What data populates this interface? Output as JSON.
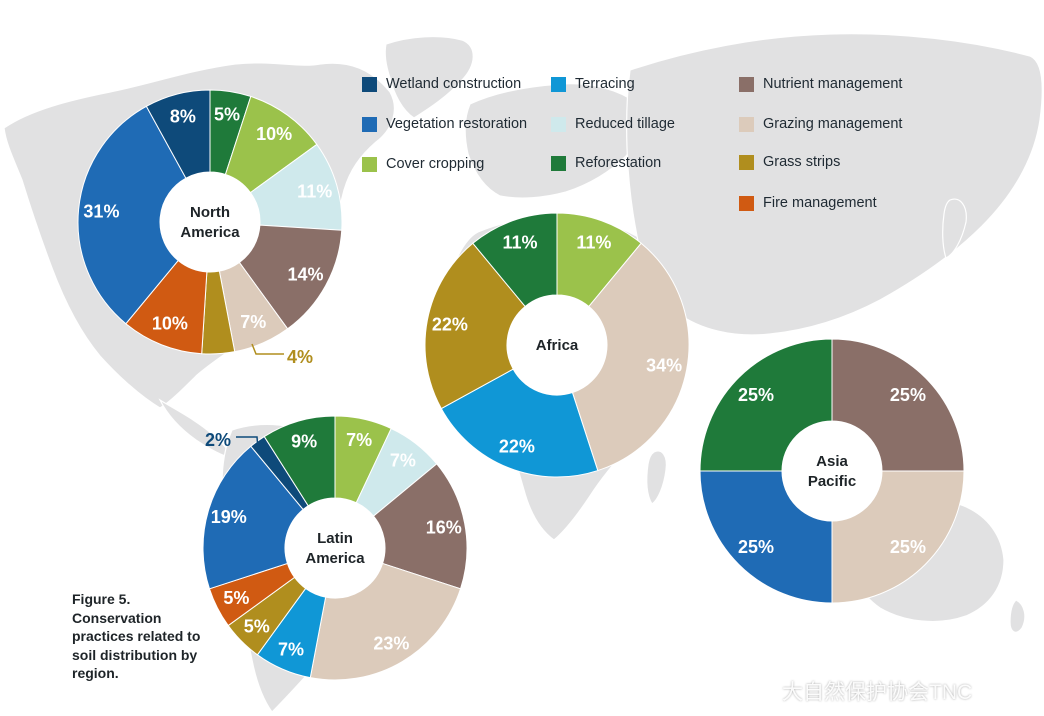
{
  "legend": [
    {
      "label": "Wetland construction",
      "color": "#0e4a7a"
    },
    {
      "label": "Terracing",
      "color": "#1097d6"
    },
    {
      "label": "Nutrient management",
      "color": "#8a6f68"
    },
    {
      "label": "Vegetation restoration",
      "color": "#1f6bb5"
    },
    {
      "label": "Reduced tillage",
      "color": "#cfe9ec"
    },
    {
      "label": "Grazing management",
      "color": "#dccbbb"
    },
    {
      "label": "Cover cropping",
      "color": "#9bc24b"
    },
    {
      "label": "Reforestation",
      "color": "#1f7a3a"
    },
    {
      "label": "Grass strips",
      "color": "#b08e1e"
    },
    {
      "label": "Fire management",
      "color": "#d05a12"
    }
  ],
  "caption": {
    "line1": "Figure 5.",
    "line2": "Conservation",
    "line3": "practices related to",
    "line4": "soil distribution by",
    "line5": "region."
  },
  "watermark": {
    "text": "大自然保护协会TNC"
  },
  "chart_data": [
    {
      "type": "pie",
      "region": "North America",
      "center_label": [
        "North",
        "America"
      ],
      "slices": [
        {
          "category": "Reforestation",
          "value": 5,
          "label": "5%"
        },
        {
          "category": "Cover cropping",
          "value": 10,
          "label": "10%"
        },
        {
          "category": "Reduced tillage",
          "value": 11,
          "label": "11%"
        },
        {
          "category": "Nutrient management",
          "value": 14,
          "label": "14%"
        },
        {
          "category": "Grazing management",
          "value": 7,
          "label": "7%"
        },
        {
          "category": "Grass strips",
          "value": 4,
          "label": "4%"
        },
        {
          "category": "Fire management",
          "value": 10,
          "label": "10%"
        },
        {
          "category": "Vegetation restoration",
          "value": 31,
          "label": "31%"
        },
        {
          "category": "Wetland construction",
          "value": 8,
          "label": "8%"
        }
      ]
    },
    {
      "type": "pie",
      "region": "Africa",
      "center_label": [
        "Africa"
      ],
      "slices": [
        {
          "category": "Cover cropping",
          "value": 11,
          "label": "11%"
        },
        {
          "category": "Grazing management",
          "value": 34,
          "label": "34%"
        },
        {
          "category": "Terracing",
          "value": 22,
          "label": "22%"
        },
        {
          "category": "Grass strips",
          "value": 22,
          "label": "22%"
        },
        {
          "category": "Reforestation",
          "value": 11,
          "label": "11%"
        }
      ]
    },
    {
      "type": "pie",
      "region": "Asia Pacific",
      "center_label": [
        "Asia",
        "Pacific"
      ],
      "slices": [
        {
          "category": "Nutrient management",
          "value": 25,
          "label": "25%"
        },
        {
          "category": "Grazing management",
          "value": 25,
          "label": "25%"
        },
        {
          "category": "Vegetation restoration",
          "value": 25,
          "label": "25%"
        },
        {
          "category": "Reforestation",
          "value": 25,
          "label": "25%"
        }
      ]
    },
    {
      "type": "pie",
      "region": "Latin America",
      "center_label": [
        "Latin",
        "America"
      ],
      "slices": [
        {
          "category": "Cover cropping",
          "value": 7,
          "label": "7%"
        },
        {
          "category": "Reduced tillage",
          "value": 7,
          "label": "7%"
        },
        {
          "category": "Nutrient management",
          "value": 16,
          "label": "16%"
        },
        {
          "category": "Grazing management",
          "value": 23,
          "label": "23%"
        },
        {
          "category": "Terracing",
          "value": 7,
          "label": "7%"
        },
        {
          "category": "Grass strips",
          "value": 5,
          "label": "5%"
        },
        {
          "category": "Fire management",
          "value": 5,
          "label": "5%"
        },
        {
          "category": "Vegetation restoration",
          "value": 19,
          "label": "19%"
        },
        {
          "category": "Wetland construction",
          "value": 2,
          "label": "2%"
        },
        {
          "category": "Reforestation",
          "value": 9,
          "label": "9%"
        }
      ]
    }
  ]
}
